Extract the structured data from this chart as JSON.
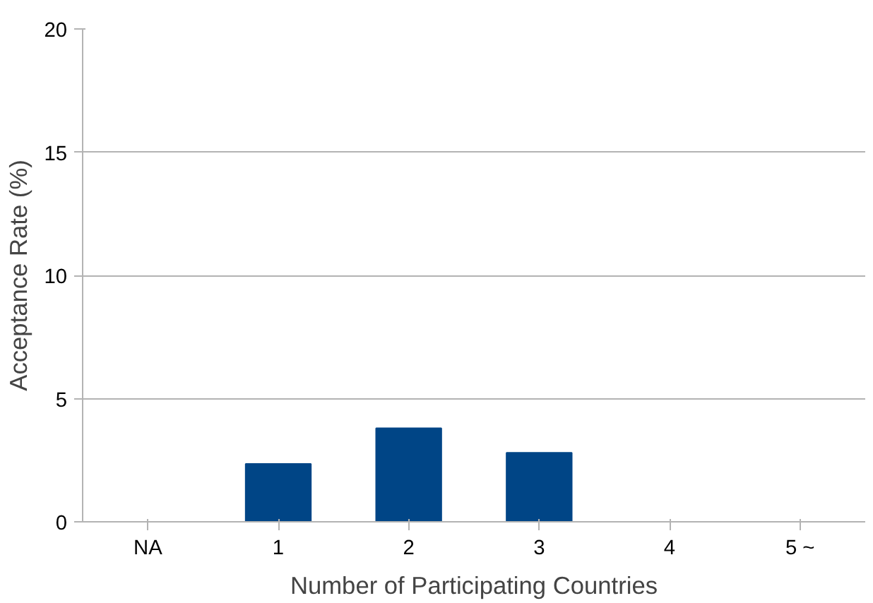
{
  "chart_data": {
    "type": "bar",
    "xlabel": "Number of Participating Countries",
    "ylabel": "Acceptance Rate (%)",
    "categories": [
      "NA",
      "1",
      "2",
      "3",
      "4",
      "5 ~"
    ],
    "values": [
      0,
      2.35,
      3.8,
      2.8,
      0,
      0
    ],
    "color": "#004586",
    "ylim": [
      0,
      20
    ],
    "yticks": [
      0,
      5,
      10,
      15,
      20
    ],
    "grid": "y"
  }
}
